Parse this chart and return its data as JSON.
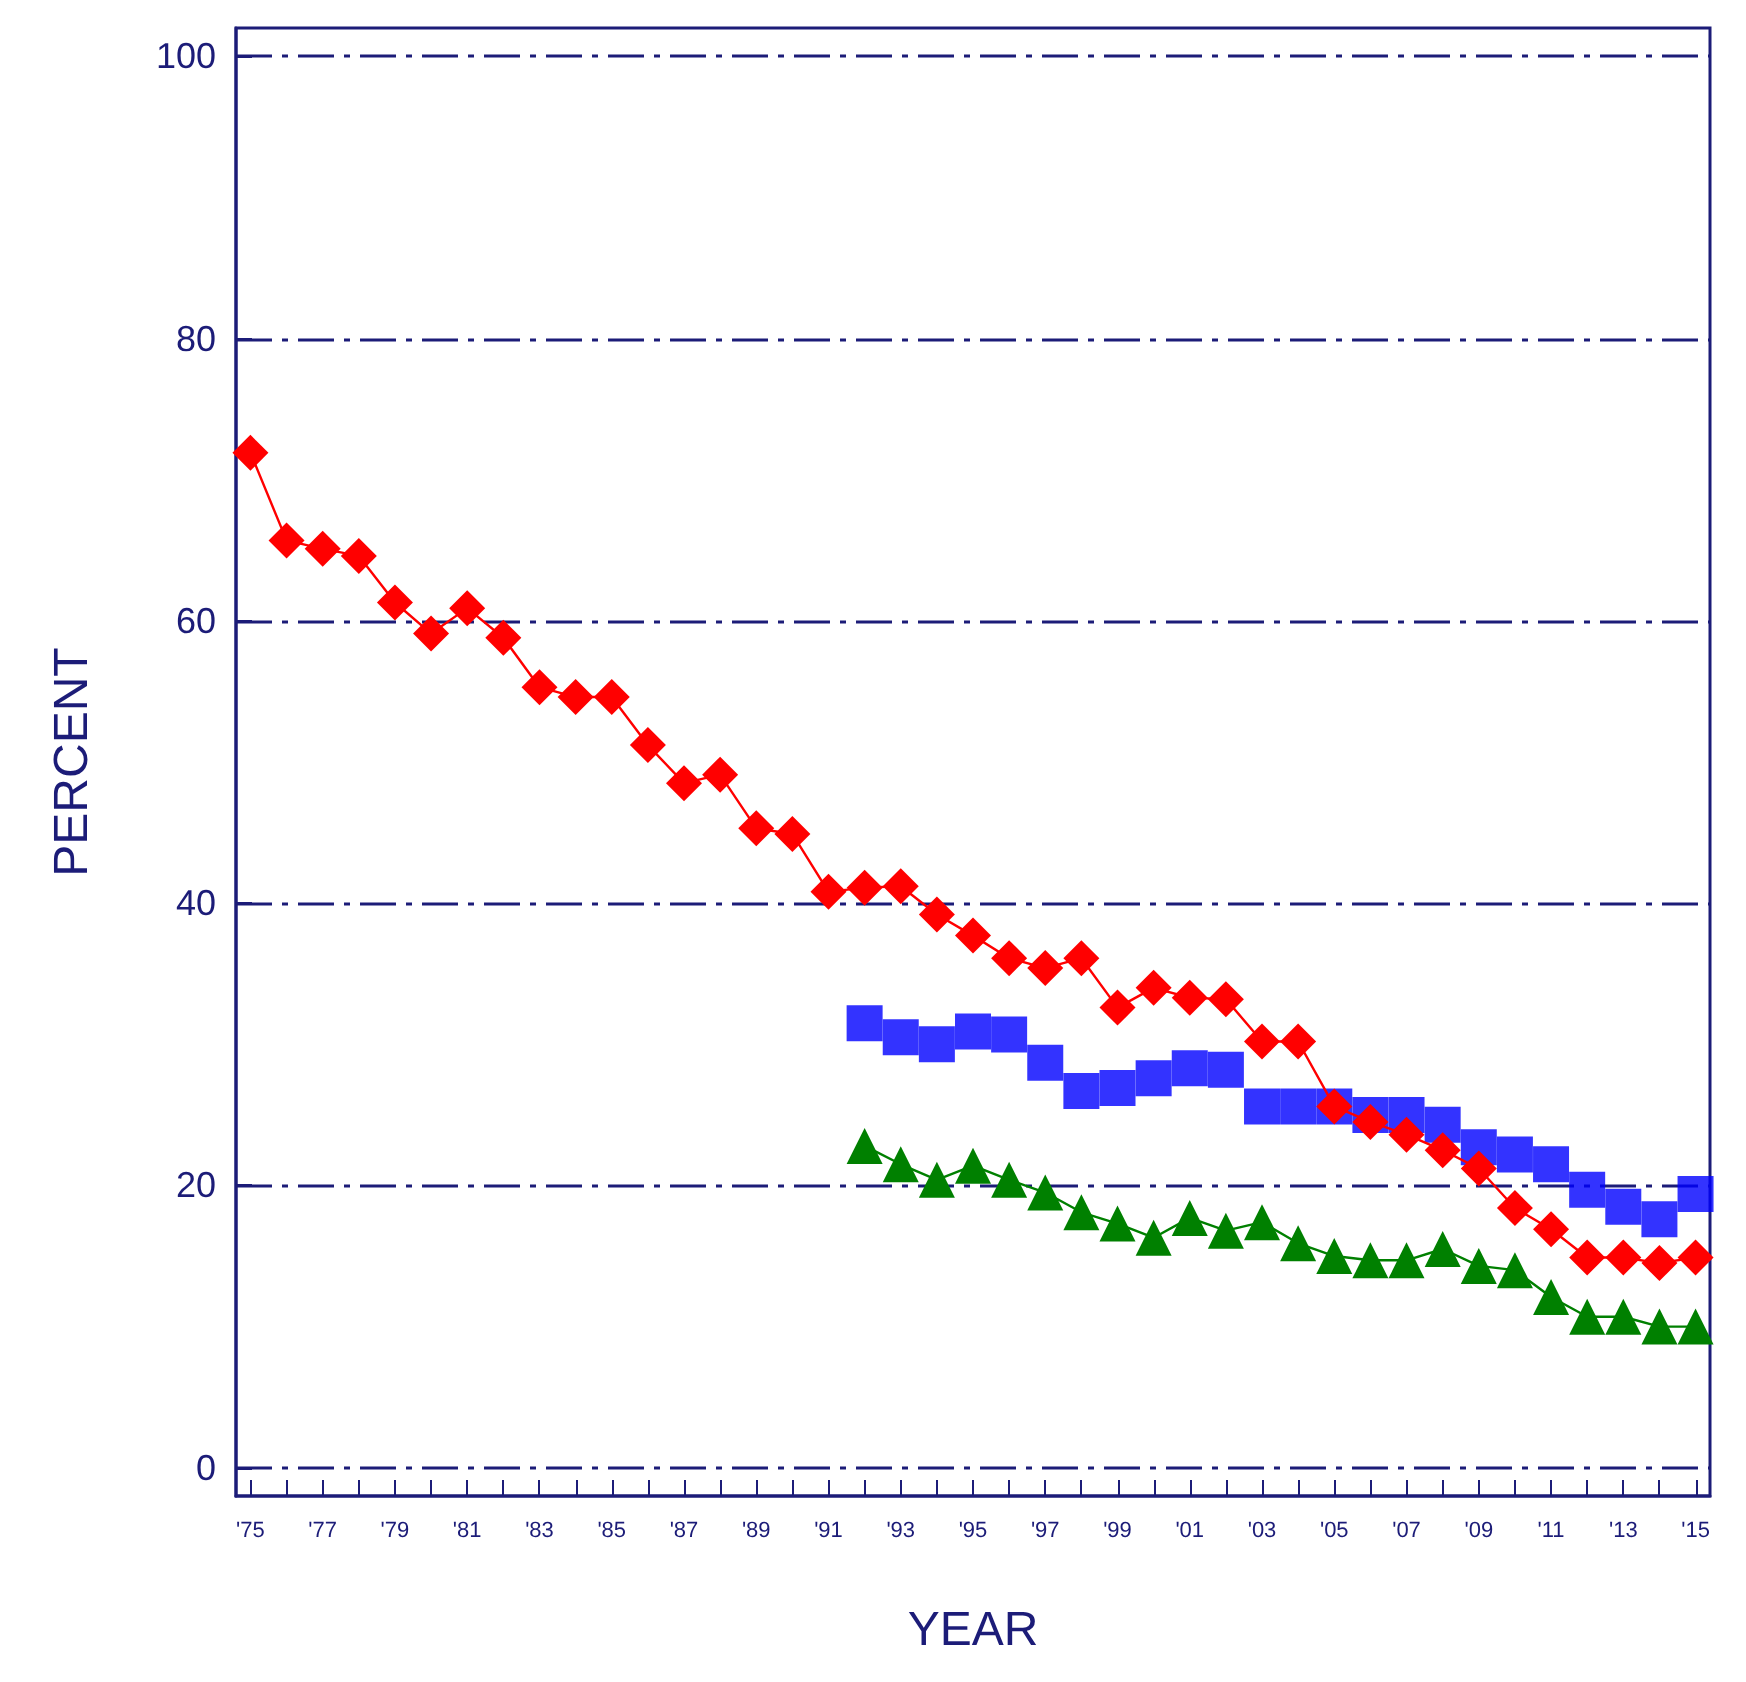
{
  "chart_data": {
    "type": "line",
    "xlabel": "YEAR",
    "ylabel": "PERCENT",
    "xlim": [
      1974.6,
      2015.4
    ],
    "ylim": [
      -2,
      102
    ],
    "xticks": [
      {
        "value": 1975,
        "label": "'75"
      },
      {
        "value": 1976,
        "label": null
      },
      {
        "value": 1977,
        "label": "'77"
      },
      {
        "value": 1978,
        "label": null
      },
      {
        "value": 1979,
        "label": "'79"
      },
      {
        "value": 1980,
        "label": null
      },
      {
        "value": 1981,
        "label": "'81"
      },
      {
        "value": 1982,
        "label": null
      },
      {
        "value": 1983,
        "label": "'83"
      },
      {
        "value": 1984,
        "label": null
      },
      {
        "value": 1985,
        "label": "'85"
      },
      {
        "value": 1986,
        "label": null
      },
      {
        "value": 1987,
        "label": "'87"
      },
      {
        "value": 1988,
        "label": null
      },
      {
        "value": 1989,
        "label": "'89"
      },
      {
        "value": 1990,
        "label": null
      },
      {
        "value": 1991,
        "label": "'91"
      },
      {
        "value": 1992,
        "label": null
      },
      {
        "value": 1993,
        "label": "'93"
      },
      {
        "value": 1994,
        "label": null
      },
      {
        "value": 1995,
        "label": "'95"
      },
      {
        "value": 1996,
        "label": null
      },
      {
        "value": 1997,
        "label": "'97"
      },
      {
        "value": 1998,
        "label": null
      },
      {
        "value": 1999,
        "label": "'99"
      },
      {
        "value": 2000,
        "label": null
      },
      {
        "value": 2001,
        "label": "'01"
      },
      {
        "value": 2002,
        "label": null
      },
      {
        "value": 2003,
        "label": "'03"
      },
      {
        "value": 2004,
        "label": null
      },
      {
        "value": 2005,
        "label": "'05"
      },
      {
        "value": 2006,
        "label": null
      },
      {
        "value": 2007,
        "label": "'07"
      },
      {
        "value": 2008,
        "label": null
      },
      {
        "value": 2009,
        "label": "'09"
      },
      {
        "value": 2010,
        "label": null
      },
      {
        "value": 2011,
        "label": "'11"
      },
      {
        "value": 2012,
        "label": null
      },
      {
        "value": 2013,
        "label": "'13"
      },
      {
        "value": 2014,
        "label": null
      },
      {
        "value": 2015,
        "label": "'15"
      }
    ],
    "yticks": [
      0,
      20,
      40,
      60,
      80,
      100
    ],
    "grid": "y",
    "line_style": "solid",
    "series": [
      {
        "color": "#ff0000",
        "marker": "diamond",
        "x": [
          1975,
          1976,
          1977,
          1978,
          1979,
          1980,
          1981,
          1982,
          1983,
          1984,
          1985,
          1986,
          1987,
          1988,
          1989,
          1990,
          1991,
          1992,
          1993,
          1994,
          1995,
          1996,
          1997,
          1998,
          1999,
          2000,
          2001,
          2002,
          2003,
          2004,
          2005,
          2006,
          2007,
          2008,
          2009,
          2010,
          2011,
          2012,
          2013,
          2014,
          2015
        ],
        "values": [
          71.9,
          65.7,
          65.1,
          64.6,
          61.3,
          59.1,
          60.9,
          58.8,
          55.3,
          54.6,
          54.6,
          51.2,
          48.5,
          49.1,
          45.3,
          44.9,
          40.8,
          41.1,
          41.2,
          39.2,
          37.7,
          36.1,
          35.4,
          36.1,
          32.6,
          34.0,
          33.3,
          33.2,
          30.2,
          30.2,
          25.6,
          24.5,
          23.6,
          22.5,
          21.2,
          18.4,
          16.9,
          14.9,
          14.9,
          14.5,
          14.9
        ]
      },
      {
        "type": "scatter",
        "color": "#0000ff",
        "marker": "square",
        "x": [
          1992,
          1993,
          1994,
          1995,
          1996,
          1997,
          1998,
          1999,
          2000,
          2001,
          2002,
          2003,
          2004,
          2005,
          2006,
          2007,
          2008,
          2009,
          2010,
          2011,
          2012,
          2013,
          2014,
          2015
        ],
        "values": [
          31.5,
          30.5,
          30.0,
          30.9,
          30.7,
          28.7,
          26.7,
          26.9,
          27.6,
          28.3,
          28.2,
          25.6,
          25.6,
          25.6,
          25.0,
          25.0,
          24.3,
          22.7,
          22.2,
          21.5,
          19.7,
          18.5,
          17.6,
          19.4
        ]
      },
      {
        "color": "#008000",
        "marker": "triangle",
        "x": [
          1992,
          1993,
          1994,
          1995,
          1996,
          1997,
          1998,
          1999,
          2000,
          2001,
          2002,
          2003,
          2004,
          2005,
          2006,
          2007,
          2008,
          2009,
          2010,
          2011,
          2012,
          2013,
          2014,
          2015
        ],
        "values": [
          22.8,
          21.5,
          20.4,
          21.4,
          20.4,
          19.5,
          18.1,
          17.3,
          16.3,
          17.7,
          16.8,
          17.4,
          15.9,
          15.0,
          14.7,
          14.7,
          15.5,
          14.3,
          14.0,
          12.1,
          10.7,
          10.7,
          10.0,
          10.0
        ]
      }
    ]
  }
}
